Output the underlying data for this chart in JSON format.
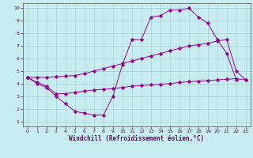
{
  "xlabel": "Windchill (Refroidissement éolien,°C)",
  "xlim": [
    -0.5,
    23.5
  ],
  "ylim": [
    0.6,
    10.4
  ],
  "xticks": [
    0,
    1,
    2,
    3,
    4,
    5,
    6,
    7,
    8,
    9,
    10,
    11,
    12,
    13,
    14,
    15,
    16,
    17,
    18,
    19,
    20,
    21,
    22,
    23
  ],
  "yticks": [
    1,
    2,
    3,
    4,
    5,
    6,
    7,
    8,
    9,
    10
  ],
  "bg_color": "#c8edf0",
  "line_color": "#990099",
  "grid_color": "#a8d0d4",
  "line1_x": [
    0,
    1,
    2,
    3,
    4,
    5,
    6,
    7,
    8,
    9,
    10,
    11,
    12,
    13,
    14,
    15,
    16,
    17,
    18,
    19,
    20,
    21,
    22
  ],
  "line1_y": [
    4.5,
    4.0,
    3.7,
    3.0,
    2.4,
    1.8,
    1.65,
    1.5,
    1.5,
    3.0,
    5.5,
    7.5,
    7.5,
    9.3,
    9.4,
    9.85,
    9.85,
    10.0,
    9.3,
    8.8,
    7.5,
    6.4,
    4.3
  ],
  "line2_x": [
    0,
    1,
    2,
    3,
    4,
    5,
    6,
    7,
    8,
    9,
    10,
    11,
    12,
    13,
    14,
    15,
    16,
    17,
    18,
    19,
    20,
    21,
    22,
    23
  ],
  "line2_y": [
    4.5,
    4.5,
    4.5,
    4.55,
    4.6,
    4.65,
    4.8,
    5.0,
    5.2,
    5.4,
    5.6,
    5.8,
    6.0,
    6.2,
    6.4,
    6.6,
    6.8,
    7.0,
    7.1,
    7.2,
    7.4,
    7.5,
    5.0,
    4.3
  ],
  "line3_x": [
    0,
    1,
    2,
    3,
    4,
    5,
    6,
    7,
    8,
    9,
    10,
    11,
    12,
    13,
    14,
    15,
    16,
    17,
    18,
    19,
    20,
    21,
    22,
    23
  ],
  "line3_y": [
    4.5,
    4.1,
    3.8,
    3.2,
    3.2,
    3.3,
    3.4,
    3.5,
    3.55,
    3.6,
    3.7,
    3.8,
    3.85,
    3.9,
    3.95,
    4.0,
    4.1,
    4.15,
    4.2,
    4.25,
    4.3,
    4.35,
    4.4,
    4.3
  ]
}
